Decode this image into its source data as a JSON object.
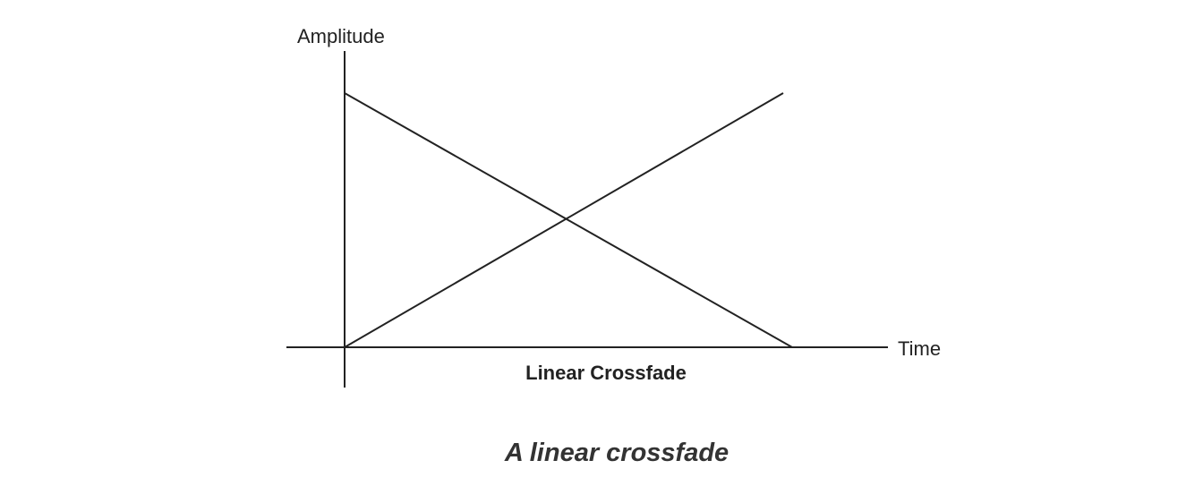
{
  "chart_data": {
    "type": "line",
    "title": "Linear Crossfade",
    "xlabel": "Time",
    "ylabel": "Amplitude",
    "xlim": [
      0,
      1
    ],
    "ylim": [
      0,
      1
    ],
    "grid": false,
    "legend": "none",
    "series": [
      {
        "x": [
          0,
          1
        ],
        "y": [
          1,
          0
        ]
      },
      {
        "x": [
          0,
          0.98
        ],
        "y": [
          0,
          1
        ]
      }
    ],
    "line_color": "#222222"
  },
  "caption": "A linear crossfade"
}
